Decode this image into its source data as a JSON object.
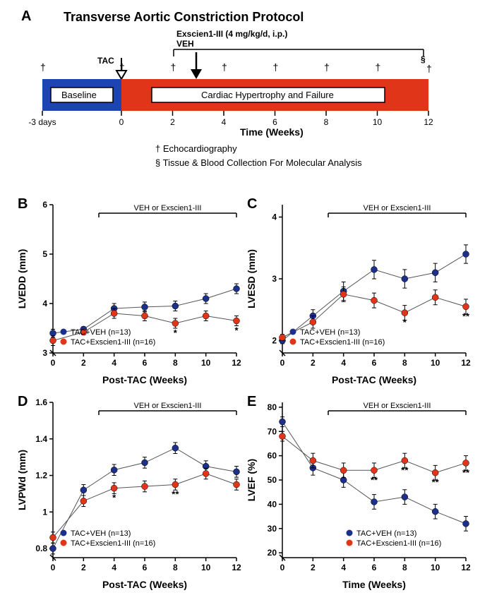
{
  "colors": {
    "veh": "#1c2f8a",
    "exs": "#e1351a",
    "black": "#000000",
    "blue_box": "#1c44b3",
    "red_box": "#e1351a",
    "white": "#ffffff"
  },
  "panelA": {
    "label": "A",
    "title": "Transverse Aortic Constriction Protocol",
    "drug_label": "Exscien1-III (4 mg/kg/d, i.p.)",
    "veh_label": "VEH",
    "tac_label": "TAC",
    "baseline_label": "Baseline",
    "red_label": "Cardiac Hypertrophy and Failure",
    "xaxis_label": "Time (Weeks)",
    "legend_echo": "† Echocardiography",
    "legend_tissue": "§ Tissue & Blood Collection For Molecular Analysis",
    "xticks": [
      "-3 days",
      "0",
      "2",
      "4",
      "6",
      "8",
      "10",
      "12"
    ]
  },
  "commonLegend": {
    "veh": "TAC+VEH (n=13)",
    "exs": "TAC+Exscien1-III (n=16)",
    "treatment_label": "VEH or Exscien1-III"
  },
  "panelB": {
    "label": "B",
    "ylabel": "LVEDD (mm)",
    "xlabel": "Post-TAC (Weeks)",
    "xticks": [
      0,
      2,
      4,
      6,
      8,
      10,
      12
    ],
    "yticks": [
      3,
      4,
      5,
      6
    ],
    "ylim": [
      3,
      6
    ],
    "veh": {
      "x": [
        0,
        2,
        4,
        6,
        8,
        10,
        12
      ],
      "y": [
        3.4,
        3.48,
        3.9,
        3.93,
        3.95,
        4.1,
        4.3
      ],
      "err": [
        0.08,
        0.05,
        0.1,
        0.1,
        0.1,
        0.1,
        0.1
      ]
    },
    "exs": {
      "x": [
        0,
        2,
        4,
        6,
        8,
        10,
        12
      ],
      "y": [
        3.25,
        3.42,
        3.8,
        3.75,
        3.6,
        3.75,
        3.65
      ],
      "err": [
        0.1,
        0.05,
        0.1,
        0.1,
        0.1,
        0.1,
        0.1
      ]
    },
    "sig": [
      {
        "x": 8,
        "s": "*"
      },
      {
        "x": 12,
        "s": "*"
      }
    ]
  },
  "panelC": {
    "label": "C",
    "ylabel": "LVESD (mm)",
    "xlabel": "Post-TAC (Weeks)",
    "xticks": [
      0,
      2,
      4,
      6,
      8,
      10,
      12
    ],
    "yticks": [
      2,
      3,
      4
    ],
    "ylim": [
      1.8,
      4.2
    ],
    "veh": {
      "x": [
        0,
        2,
        4,
        6,
        8,
        10,
        12
      ],
      "y": [
        2.0,
        2.4,
        2.8,
        3.15,
        3.0,
        3.1,
        3.4
      ],
      "err": [
        0.05,
        0.1,
        0.15,
        0.15,
        0.15,
        0.15,
        0.15
      ]
    },
    "exs": {
      "x": [
        0,
        2,
        4,
        6,
        8,
        10,
        12
      ],
      "y": [
        2.05,
        2.3,
        2.75,
        2.65,
        2.45,
        2.7,
        2.55
      ],
      "err": [
        0.05,
        0.1,
        0.12,
        0.12,
        0.12,
        0.12,
        0.12
      ]
    },
    "sig": [
      {
        "x": 8,
        "s": "*"
      },
      {
        "x": 12,
        "s": "**"
      }
    ]
  },
  "panelD": {
    "label": "D",
    "ylabel": "LVPWd (mm)",
    "xlabel": "Post-TAC (Weeks)",
    "xticks": [
      0,
      2,
      4,
      6,
      8,
      10,
      12
    ],
    "yticks": [
      0.8,
      1.0,
      1.2,
      1.4,
      1.6
    ],
    "ylim": [
      0.75,
      1.6
    ],
    "veh": {
      "x": [
        0,
        2,
        4,
        6,
        8,
        10,
        12
      ],
      "y": [
        0.8,
        1.12,
        1.23,
        1.27,
        1.35,
        1.25,
        1.22
      ],
      "err": [
        0.03,
        0.03,
        0.03,
        0.03,
        0.03,
        0.03,
        0.03
      ]
    },
    "exs": {
      "x": [
        0,
        2,
        4,
        6,
        8,
        10,
        12
      ],
      "y": [
        0.86,
        1.06,
        1.13,
        1.14,
        1.15,
        1.21,
        1.15
      ],
      "err": [
        0.03,
        0.03,
        0.03,
        0.03,
        0.03,
        0.03,
        0.03
      ]
    },
    "sig": [
      {
        "x": 4,
        "s": "*"
      },
      {
        "x": 8,
        "s": "**"
      }
    ]
  },
  "panelE": {
    "label": "E",
    "ylabel": "LVEF (%)",
    "xlabel": "Time (Weeks)",
    "xticks": [
      0,
      2,
      4,
      6,
      8,
      10,
      12
    ],
    "yticks": [
      20,
      30,
      40,
      50,
      60,
      70,
      80
    ],
    "ylim": [
      18,
      82
    ],
    "veh": {
      "x": [
        0,
        2,
        4,
        6,
        8,
        10,
        12
      ],
      "y": [
        74,
        55,
        50,
        41,
        43,
        37,
        32
      ],
      "err": [
        2,
        3,
        3,
        3,
        3,
        3,
        3
      ]
    },
    "exs": {
      "x": [
        0,
        2,
        4,
        6,
        8,
        10,
        12
      ],
      "y": [
        68,
        58,
        54,
        54,
        58,
        53,
        57
      ],
      "err": [
        2,
        3,
        3,
        3,
        3,
        3,
        3
      ]
    },
    "sig": [
      {
        "x": 6,
        "s": "**"
      },
      {
        "x": 8,
        "s": "**"
      },
      {
        "x": 10,
        "s": "**"
      },
      {
        "x": 12,
        "s": "**"
      }
    ]
  }
}
